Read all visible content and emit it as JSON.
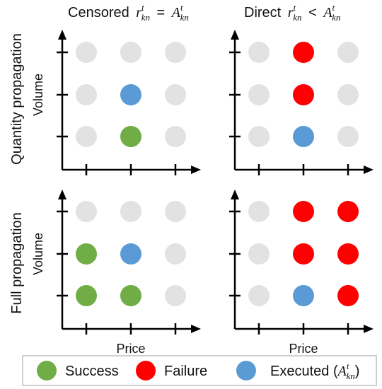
{
  "column_titles": {
    "left": {
      "prefix": "Censored",
      "r": "r",
      "sup": "t",
      "sub": "kn",
      "op": "=",
      "A": "A",
      "asup": "t",
      "asub": "kn"
    },
    "right": {
      "prefix": "Direct",
      "r": "r",
      "sup": "t",
      "sub": "kn",
      "op": "<",
      "A": "A",
      "asup": "t",
      "asub": "kn"
    }
  },
  "row_titles": {
    "top": "Quantity propagation",
    "bottom": "Full propagation"
  },
  "axis_labels": {
    "y": "Volume",
    "x": "Price"
  },
  "colors": {
    "empty": "#e2e2e2",
    "success": "#70ad47",
    "failure": "#ff0000",
    "executed": "#5b9bd5"
  },
  "panels": [
    {
      "name": "quantity-censored",
      "grid": [
        [
          "empty",
          "empty",
          "empty"
        ],
        [
          "empty",
          "executed",
          "empty"
        ],
        [
          "empty",
          "success",
          "empty"
        ]
      ],
      "show_x_label": false,
      "show_y_label": true
    },
    {
      "name": "quantity-direct",
      "grid": [
        [
          "empty",
          "failure",
          "empty"
        ],
        [
          "empty",
          "failure",
          "empty"
        ],
        [
          "empty",
          "executed",
          "empty"
        ]
      ],
      "show_x_label": false,
      "show_y_label": false
    },
    {
      "name": "full-censored",
      "grid": [
        [
          "empty",
          "empty",
          "empty"
        ],
        [
          "success",
          "executed",
          "empty"
        ],
        [
          "success",
          "success",
          "empty"
        ]
      ],
      "show_x_label": true,
      "show_y_label": true
    },
    {
      "name": "full-direct",
      "grid": [
        [
          "empty",
          "failure",
          "failure"
        ],
        [
          "empty",
          "failure",
          "failure"
        ],
        [
          "empty",
          "executed",
          "failure"
        ]
      ],
      "show_x_label": true,
      "show_y_label": false
    }
  ],
  "legend": {
    "success": "Success",
    "failure": "Failure",
    "executed_prefix": "Executed (",
    "executed_A": "A",
    "executed_sup": "t",
    "executed_sub": "kn",
    "executed_suffix": ")"
  }
}
